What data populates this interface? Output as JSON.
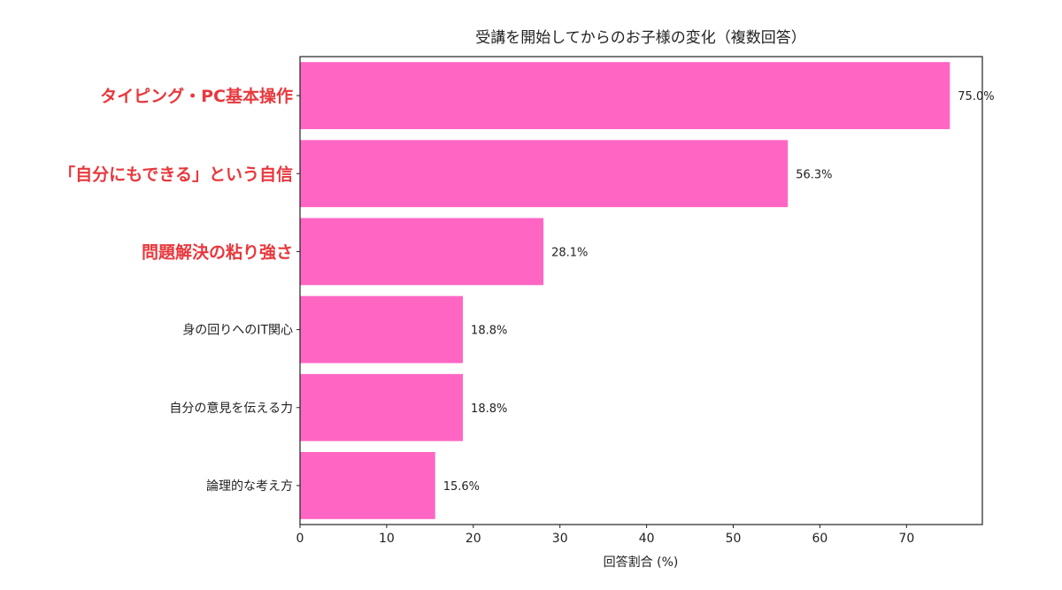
{
  "chart_data": {
    "type": "bar",
    "orientation": "horizontal",
    "title": "受講を開始してからのお子様の変化（複数回答）",
    "xlabel": "回答割合 (%)",
    "ylabel": "",
    "xlim": [
      0,
      78.75
    ],
    "xticks": [
      "0",
      "10",
      "20",
      "30",
      "40",
      "50",
      "60",
      "70"
    ],
    "grid": false,
    "categories": [
      "タイピング・PC基本操作",
      "「自分にもできる」という自信",
      "問題解決の粘り強さ",
      "身の回りへのIT関心",
      "自分の意見を伝える力",
      "論理的な考え方"
    ],
    "values": [
      75.0,
      56.3,
      28.1,
      18.8,
      18.8,
      15.6
    ],
    "data_labels": [
      "75.0%",
      "56.3%",
      "28.1%",
      "18.8%",
      "18.8%",
      "15.6%"
    ],
    "highlighted_categories": [
      0,
      1,
      2
    ],
    "colors": {
      "bar": "#ff66c4",
      "highlight_label": "#e8383d",
      "label": "#222222"
    }
  }
}
